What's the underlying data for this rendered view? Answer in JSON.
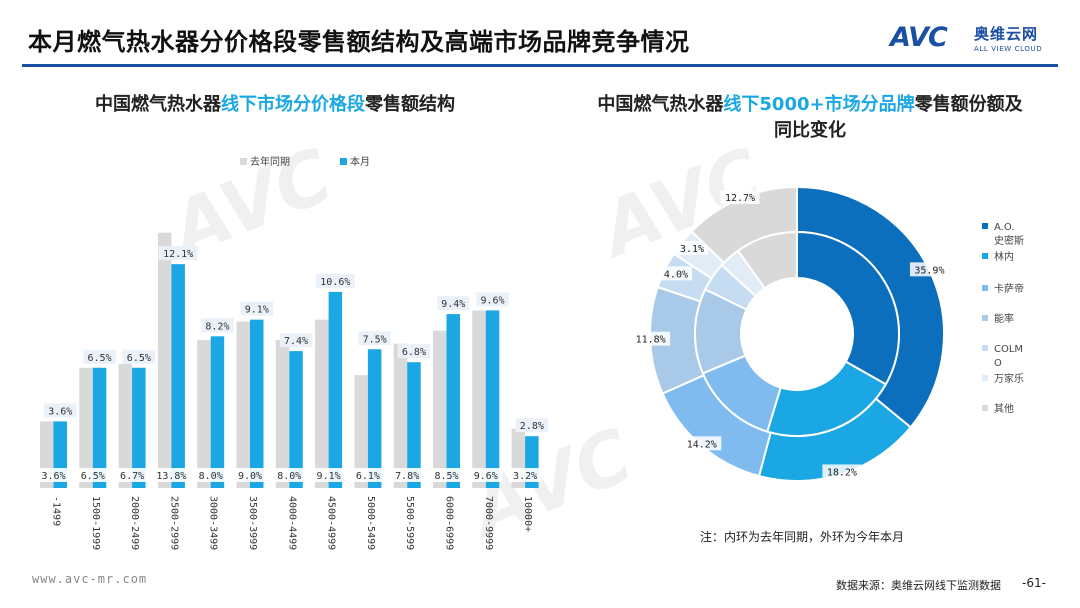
{
  "page": {
    "title": "本月燃气热水器分价格段零售额结构及高端市场品牌竞争情况",
    "logo_mark": "AVC",
    "logo_cn": "奥维云网",
    "logo_en": "ALL VIEW CLOUD",
    "url": "www.avc-mr.com",
    "source": "数据来源：奥维云网线下监测数据",
    "page_number": "-61-",
    "note": "注：内环为去年同期，外环为今年本月",
    "accent_color": "#1aa7e3",
    "brand_color": "#1a4fa3"
  },
  "left_chart": {
    "title_pre": "中国燃气热水器",
    "title_hl": "线下市场分价格段",
    "title_post": "零售额结构"
  },
  "right_chart": {
    "title_pre": "中国燃气热水器",
    "title_hl": "线下5000+市场分品牌",
    "title_post": "零售额份额及同比变化"
  },
  "chart_data": [
    {
      "type": "bar",
      "categories": [
        "-1499",
        "1500-1999",
        "2000-2499",
        "2500-2999",
        "3000-3499",
        "3500-3999",
        "4000-4499",
        "4500-4999",
        "5000-5499",
        "5500-5999",
        "6000-6999",
        "7000-9999",
        "10000+"
      ],
      "series": [
        {
          "name": "去年同期",
          "color": "#d9d9d9",
          "values": [
            3.6,
            6.5,
            6.7,
            13.8,
            8.0,
            9.0,
            8.0,
            9.1,
            6.1,
            7.8,
            8.5,
            9.6,
            3.2
          ],
          "labels": [
            "3.6%",
            "6.5%",
            "6.7%",
            "13.8%",
            "8.0%",
            "9.0%",
            "8.0%",
            "9.1%",
            "6.1%",
            "7.8%",
            "8.5%",
            "9.6%",
            "3.2%"
          ]
        },
        {
          "name": "本月",
          "color": "#1aa7e3",
          "values": [
            3.6,
            6.5,
            6.5,
            12.1,
            8.2,
            9.1,
            7.4,
            10.6,
            7.5,
            6.8,
            9.4,
            9.6,
            2.8
          ],
          "labels": [
            "3.6%",
            "6.5%",
            "6.5%",
            "12.1%",
            "8.2%",
            "9.1%",
            "7.4%",
            "10.6%",
            "7.5%",
            "6.8%",
            "9.4%",
            "9.6%",
            "2.8%"
          ]
        }
      ],
      "unit": "%",
      "legend_position": "top",
      "grid": false
    },
    {
      "type": "pie",
      "style": "double-donut",
      "categories": [
        "A.O.史密斯",
        "林内",
        "卡萨帝",
        "能率",
        "COLMO",
        "万家乐",
        "其他"
      ],
      "colors": [
        "#0b6fbd",
        "#1aa7e3",
        "#7fbbef",
        "#a8c9e8",
        "#c6dcf2",
        "#e2ecf7",
        "#d9d9d9"
      ],
      "series": [
        {
          "name": "外环",
          "values": [
            35.9,
            18.2,
            14.2,
            11.8,
            4.0,
            3.1,
            12.7
          ],
          "labels": [
            "35.9%",
            "18.2%",
            "14.2%",
            "11.8%",
            "4.0%",
            "3.1%",
            "12.7%"
          ]
        },
        {
          "name": "内环",
          "values": [
            33.2,
            21.5,
            14.0,
            13.5,
            4.6,
            3.4,
            9.8
          ],
          "labels": []
        }
      ],
      "legend_position": "right"
    }
  ]
}
